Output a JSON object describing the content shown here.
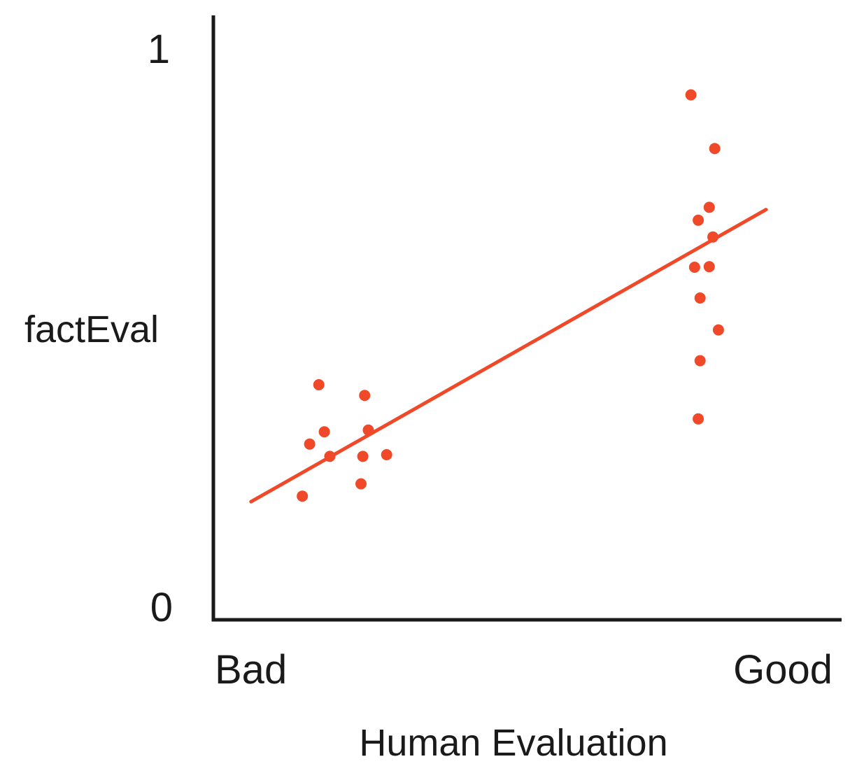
{
  "chart_data": {
    "type": "scatter",
    "title": "",
    "xlabel": "Human Evaluation",
    "ylabel": "factEval",
    "x_categories": [
      "Bad",
      "Good"
    ],
    "y_ticks": [
      "0",
      "1"
    ],
    "ylim": [
      0,
      1
    ],
    "xlim": [
      -0.3,
      2.8
    ],
    "grid": false,
    "legend": "none",
    "point_color": "#f0492a",
    "line_color": "#f0492a",
    "axis_color": "#1a1a1a",
    "points": [
      {
        "x": 0.18,
        "y": 0.196
      },
      {
        "x": 0.22,
        "y": 0.289
      },
      {
        "x": 0.27,
        "y": 0.395
      },
      {
        "x": 0.3,
        "y": 0.311
      },
      {
        "x": 0.33,
        "y": 0.267
      },
      {
        "x": 0.5,
        "y": 0.218
      },
      {
        "x": 0.51,
        "y": 0.267
      },
      {
        "x": 0.52,
        "y": 0.376
      },
      {
        "x": 0.54,
        "y": 0.314
      },
      {
        "x": 0.64,
        "y": 0.27
      },
      {
        "x": 2.3,
        "y": 0.913
      },
      {
        "x": 2.32,
        "y": 0.605
      },
      {
        "x": 2.34,
        "y": 0.689
      },
      {
        "x": 2.34,
        "y": 0.334
      },
      {
        "x": 2.35,
        "y": 0.55
      },
      {
        "x": 2.35,
        "y": 0.438
      },
      {
        "x": 2.4,
        "y": 0.712
      },
      {
        "x": 2.4,
        "y": 0.606
      },
      {
        "x": 2.42,
        "y": 0.659
      },
      {
        "x": 2.43,
        "y": 0.817
      },
      {
        "x": 2.45,
        "y": 0.493
      }
    ],
    "trend_line": {
      "x": [
        -0.1,
        2.71
      ],
      "y": [
        0.186,
        0.708
      ]
    }
  }
}
